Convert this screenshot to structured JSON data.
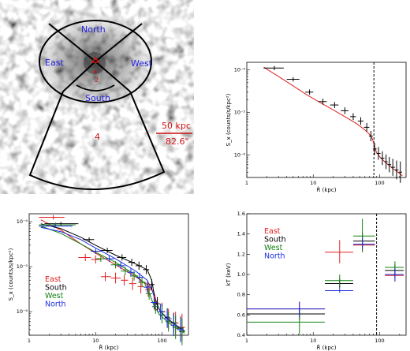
{
  "image_panel": {
    "labels": [
      "North",
      "East",
      "West",
      "South"
    ],
    "region_numbers": [
      "2",
      "4"
    ],
    "scale_physical": "50 kpc",
    "scale_angular": "82.6\""
  },
  "chart_data": [
    {
      "type": "scatter",
      "panel": "top-right",
      "xlabel": "R̂ (kpc)",
      "ylabel": "S_x (counts/s/kpc²)",
      "xscale": "log",
      "yscale": "log",
      "xlim": [
        1,
        250
      ],
      "ylim": [
        3e-07,
        0.00015
      ],
      "xticks": [
        "1",
        "10",
        "100"
      ],
      "yticks": [
        "10⁻⁶",
        "10⁻⁵",
        "10⁻⁴"
      ],
      "vline": 82,
      "model_color": "#e02020",
      "series": [
        {
          "color": "#000000",
          "x": [
            2.6,
            5.0,
            8.8,
            14,
            21,
            30,
            40,
            52,
            64,
            74,
            84,
            96,
            110,
            125,
            140,
            158,
            180,
            205
          ],
          "xl": [
            1.8,
            4.0,
            7.6,
            12,
            18,
            26,
            36,
            47,
            58,
            69,
            79,
            90,
            103,
            118,
            132,
            149,
            170,
            193
          ],
          "xh": [
            3.6,
            6.2,
            10,
            16,
            24,
            34,
            44,
            57,
            70,
            79,
            90,
            103,
            118,
            132,
            149,
            170,
            193,
            218
          ],
          "y": [
            0.00011,
            6e-05,
            3e-05,
            1.8e-05,
            1.5e-05,
            1.1e-05,
            8e-06,
            6.3e-06,
            4.5e-06,
            2.8e-06,
            1.4e-06,
            1.1e-06,
            8.5e-07,
            7e-07,
            6e-07,
            5.2e-07,
            4.5e-07,
            4e-07
          ],
          "yerr": [
            0.05,
            0.05,
            0.06,
            0.07,
            0.07,
            0.08,
            0.08,
            0.09,
            0.1,
            0.12,
            0.14,
            0.15,
            0.16,
            0.17,
            0.18,
            0.2,
            0.22,
            0.25
          ]
        }
      ],
      "model": {
        "x": [
          1.8,
          3,
          5,
          8,
          12,
          20,
          30,
          45,
          60,
          70,
          78,
          84,
          90,
          100,
          120,
          150,
          180,
          220
        ],
        "y": [
          0.000115,
          7e-05,
          4.2e-05,
          2.6e-05,
          1.8e-05,
          1.15e-05,
          8e-06,
          5.5e-06,
          3.9e-06,
          3.1e-06,
          2.4e-06,
          1.55e-06,
          1.15e-06,
          9.2e-07,
          7e-07,
          5.2e-07,
          4.2e-07,
          3.3e-07
        ]
      }
    },
    {
      "type": "scatter",
      "panel": "bottom-left",
      "xlabel": "R̂ (kpc)",
      "ylabel": "S_x (counts/s/kpc²)",
      "xscale": "log",
      "yscale": "log",
      "xlim": [
        1,
        250
      ],
      "ylim": [
        3e-07,
        0.00015
      ],
      "xticks": [
        "1",
        "10",
        "100"
      ],
      "yticks": [
        "10⁻⁶",
        "10⁻⁵",
        "10⁻⁴"
      ],
      "legend": {
        "position": "lower-left",
        "entries": [
          "East",
          "South",
          "West",
          "North"
        ]
      },
      "series": [
        {
          "name": "East",
          "color": "#e02020",
          "x": [
            2.3,
            7,
            10,
            14,
            20,
            27,
            36,
            48,
            62,
            78,
            100,
            125,
            160,
            200
          ],
          "xl": [
            1.4,
            5.5,
            8.5,
            12,
            17,
            24,
            32,
            43,
            56,
            70,
            90,
            113,
            145,
            180
          ],
          "xh": [
            3.4,
            8.5,
            12,
            17,
            24,
            31,
            41,
            54,
            70,
            88,
            112,
            140,
            178,
            222
          ],
          "y": [
            0.000125,
            1.6e-05,
            1.45e-05,
            6e-06,
            5.6e-06,
            5e-06,
            4.2e-06,
            3.6e-06,
            3.1e-06,
            1.6e-06,
            1e-06,
            7e-07,
            5.6e-07,
            4.5e-07
          ],
          "yerr": [
            0.05,
            0.08,
            0.09,
            0.1,
            0.12,
            0.12,
            0.14,
            0.15,
            0.16,
            0.18,
            0.2,
            0.22,
            0.25,
            0.3
          ]
        },
        {
          "name": "South",
          "color": "#000000",
          "x": [
            3,
            8,
            15,
            25,
            35,
            45,
            58,
            70,
            85,
            100,
            120,
            150,
            190
          ],
          "xl": [
            1.7,
            6.5,
            12,
            21,
            31,
            40,
            52,
            64,
            77,
            91,
            110,
            135,
            170
          ],
          "xh": [
            5.5,
            9.5,
            18,
            29,
            39,
            50,
            64,
            77,
            93,
            110,
            132,
            167,
            212
          ],
          "y": [
            9e-05,
            4e-05,
            2.3e-05,
            1.6e-05,
            1.25e-05,
            1.05e-05,
            8.6e-06,
            4e-06,
            1.5e-06,
            1e-06,
            7.5e-07,
            5.6e-07,
            4.3e-07
          ],
          "yerr": [
            0.04,
            0.05,
            0.06,
            0.07,
            0.08,
            0.09,
            0.1,
            0.12,
            0.15,
            0.17,
            0.2,
            0.23,
            0.26
          ]
        },
        {
          "name": "West",
          "color": "#108010",
          "x": [
            2.5,
            12,
            20,
            28,
            38,
            50,
            64,
            80,
            100,
            125,
            160,
            200
          ],
          "xl": [
            1.4,
            10,
            17,
            24,
            33,
            44,
            57,
            71,
            90,
            112,
            143,
            180
          ],
          "xh": [
            5,
            14,
            24,
            32,
            44,
            57,
            71,
            90,
            112,
            140,
            178,
            222
          ],
          "y": [
            8.5e-05,
            1.5e-05,
            1.1e-05,
            8e-06,
            6.2e-06,
            4.5e-06,
            2.5e-06,
            1.3e-06,
            8.5e-07,
            6e-07,
            4.5e-07,
            3.6e-07
          ],
          "yerr": [
            0.05,
            0.07,
            0.08,
            0.09,
            0.1,
            0.11,
            0.13,
            0.16,
            0.19,
            0.22,
            0.26,
            0.3
          ]
        },
        {
          "name": "North",
          "color": "#1c2ee0",
          "x": [
            2.4,
            10,
            16,
            24,
            34,
            46,
            60,
            76,
            95,
            120,
            150,
            190
          ],
          "xl": [
            1.4,
            8.5,
            14,
            21,
            30,
            41,
            53,
            68,
            85,
            107,
            135,
            170
          ],
          "xh": [
            4.5,
            12,
            19,
            28,
            39,
            52,
            68,
            85,
            107,
            135,
            168,
            212
          ],
          "y": [
            8e-05,
            2.2e-05,
            1.5e-05,
            1.05e-05,
            7.5e-06,
            5.8e-06,
            3.5e-06,
            1.6e-06,
            1e-06,
            7e-07,
            5e-07,
            4e-07
          ],
          "yerr": [
            0.05,
            0.06,
            0.07,
            0.08,
            0.09,
            0.1,
            0.12,
            0.15,
            0.18,
            0.21,
            0.24,
            0.28
          ]
        }
      ],
      "models": [
        {
          "color": "#e02020",
          "x": [
            1.5,
            3,
            6,
            10,
            20,
            40,
            60,
            75,
            85,
            100,
            130,
            180,
            220
          ],
          "y": [
            0.00011,
            6.5e-05,
            3.2e-05,
            2e-05,
            1.1e-05,
            6e-06,
            4e-06,
            2.8e-06,
            1.4e-06,
            9e-07,
            6.2e-07,
            4.4e-07,
            3.6e-07
          ]
        },
        {
          "color": "#000000",
          "x": [
            1.5,
            3,
            6,
            10,
            20,
            40,
            60,
            70,
            78,
            90,
            110,
            150,
            220
          ],
          "y": [
            9e-05,
            7e-05,
            4.5e-05,
            3e-05,
            1.8e-05,
            1.15e-05,
            8.5e-06,
            5e-06,
            2e-06,
            1.15e-06,
            8e-07,
            5.5e-07,
            3.7e-07
          ]
        },
        {
          "color": "#108010",
          "x": [
            1.5,
            3,
            6,
            10,
            20,
            40,
            55,
            65,
            75,
            90,
            120,
            160,
            220
          ],
          "y": [
            8e-05,
            5.5e-05,
            3.2e-05,
            2.1e-05,
            1.25e-05,
            6.5e-06,
            4.2e-06,
            2.5e-06,
            1.4e-06,
            9e-07,
            6e-07,
            4.4e-07,
            3.3e-07
          ]
        },
        {
          "color": "#1c2ee0",
          "x": [
            1.5,
            3,
            6,
            10,
            20,
            40,
            60,
            72,
            82,
            95,
            120,
            160,
            220
          ],
          "y": [
            7.5e-05,
            6e-05,
            4e-05,
            2.6e-05,
            1.5e-05,
            8e-06,
            5e-06,
            2.8e-06,
            1.5e-06,
            1e-06,
            7e-07,
            5e-07,
            3.6e-07
          ]
        }
      ]
    },
    {
      "type": "scatter",
      "panel": "bottom-right",
      "xlabel": "R̂ (kpc)",
      "ylabel": "kT (keV)",
      "xscale": "log",
      "xlim": [
        1,
        250
      ],
      "ylim": [
        0.4,
        1.6
      ],
      "xticks": [
        "1",
        "10",
        "100"
      ],
      "yticks": [
        "0.4",
        "0.6",
        "0.8",
        "1.0",
        "1.2",
        "1.4",
        "1.6"
      ],
      "vline": 90,
      "legend": {
        "position": "upper-left",
        "entries": [
          "East",
          "South",
          "West",
          "North"
        ]
      },
      "series": [
        {
          "name": "East",
          "color": "#e02020",
          "x": [
            6.2,
            25,
            55,
            170
          ],
          "xl": [
            1,
            15,
            40,
            120
          ],
          "xh": [
            15,
            40,
            85,
            230
          ],
          "y": [
            0.66,
            1.22,
            1.29,
            0.99
          ],
          "ylo": [
            0.59,
            1.11,
            1.22,
            0.93
          ],
          "yhi": [
            0.73,
            1.34,
            1.37,
            1.06
          ]
        },
        {
          "name": "South",
          "color": "#000000",
          "x": [
            6.2,
            25,
            55,
            170
          ],
          "xl": [
            1,
            15,
            40,
            120
          ],
          "xh": [
            15,
            40,
            85,
            230
          ],
          "y": [
            0.61,
            0.91,
            1.33,
            1.04
          ],
          "ylo": [
            0.55,
            0.87,
            1.27,
            0.97
          ],
          "yhi": [
            0.67,
            0.96,
            1.41,
            1.1
          ]
        },
        {
          "name": "West",
          "color": "#108010",
          "x": [
            6.2,
            25,
            55,
            170
          ],
          "xl": [
            1,
            15,
            40,
            120
          ],
          "xh": [
            15,
            40,
            85,
            230
          ],
          "y": [
            0.53,
            0.94,
            1.38,
            1.07
          ],
          "ylo": [
            0.41,
            0.88,
            1.22,
            0.98
          ],
          "yhi": [
            0.66,
            1.0,
            1.55,
            1.13
          ]
        },
        {
          "name": "North",
          "color": "#1c2ee0",
          "x": [
            6.2,
            25,
            55,
            170
          ],
          "xl": [
            1,
            15,
            40,
            120
          ],
          "xh": [
            15,
            40,
            85,
            230
          ],
          "y": [
            0.66,
            0.84,
            1.3,
            1.0
          ],
          "ylo": [
            0.58,
            0.82,
            1.25,
            0.93
          ],
          "yhi": [
            0.73,
            0.87,
            1.36,
            1.06
          ]
        }
      ]
    }
  ]
}
